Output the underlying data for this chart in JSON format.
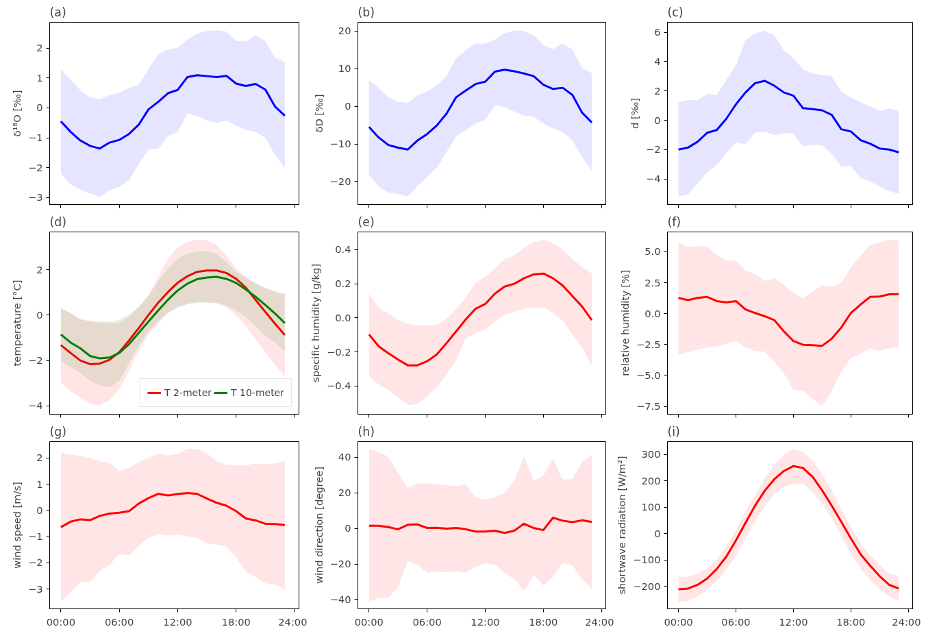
{
  "chart_data": [
    {
      "type": "line",
      "title": "(a)",
      "ylabel": "δ¹⁸O [‰]",
      "x": [
        0,
        1,
        2,
        3,
        4,
        5,
        6,
        7,
        8,
        9,
        10,
        11,
        12,
        13,
        14,
        15,
        16,
        17,
        18,
        19,
        20,
        21,
        22,
        23
      ],
      "xlim": [
        -1.15,
        24.45
      ],
      "xticks": [
        {
          "value": 0,
          "label": null
        },
        {
          "value": 6,
          "label": null
        },
        {
          "value": 12,
          "label": null
        },
        {
          "value": 18,
          "label": null
        },
        {
          "value": 24,
          "label": null
        }
      ],
      "ylim": [
        -3.23,
        2.86
      ],
      "yticks": [
        -3,
        -2,
        -1,
        0,
        1,
        2
      ],
      "tick_labels": "y",
      "grid": false,
      "legend": false,
      "series": [
        {
          "color": "#0000ff",
          "values": [
            -0.45,
            -0.8,
            -1.09,
            -1.27,
            -1.36,
            -1.16,
            -1.07,
            -0.87,
            -0.56,
            -0.05,
            0.2,
            0.49,
            0.6,
            1.03,
            1.09,
            1.06,
            1.03,
            1.07,
            0.81,
            0.73,
            0.8,
            0.61,
            0.04,
            -0.26
          ],
          "lower": [
            -2.19,
            -2.56,
            -2.74,
            -2.86,
            -2.97,
            -2.76,
            -2.64,
            -2.42,
            -1.88,
            -1.39,
            -1.37,
            -0.94,
            -0.8,
            -0.19,
            -0.27,
            -0.42,
            -0.5,
            -0.42,
            -0.6,
            -0.73,
            -0.81,
            -1.0,
            -1.58,
            -2.01
          ],
          "upper": [
            1.28,
            0.94,
            0.59,
            0.35,
            0.29,
            0.43,
            0.51,
            0.67,
            0.77,
            1.3,
            1.79,
            1.95,
            2.01,
            2.28,
            2.48,
            2.57,
            2.59,
            2.55,
            2.24,
            2.22,
            2.43,
            2.24,
            1.67,
            1.54
          ]
        }
      ]
    },
    {
      "type": "line",
      "title": "(b)",
      "ylabel": "δD [‰]",
      "x": [
        0,
        1,
        2,
        3,
        4,
        5,
        6,
        7,
        8,
        9,
        10,
        11,
        12,
        13,
        14,
        15,
        16,
        17,
        18,
        19,
        20,
        21,
        22,
        23
      ],
      "xlim": [
        -1.15,
        24.45
      ],
      "xticks": [
        {
          "value": 0,
          "label": null
        },
        {
          "value": 6,
          "label": null
        },
        {
          "value": 12,
          "label": null
        },
        {
          "value": 18,
          "label": null
        },
        {
          "value": 24,
          "label": null
        }
      ],
      "ylim": [
        -26.1,
        22.3
      ],
      "yticks": [
        -20,
        -10,
        0,
        10,
        20
      ],
      "tick_labels": "y",
      "grid": false,
      "legend": false,
      "series": [
        {
          "color": "#0000ff",
          "values": [
            -5.5,
            -8.3,
            -10.3,
            -11.0,
            -11.5,
            -9.1,
            -7.4,
            -5.1,
            -2.0,
            2.4,
            4.2,
            5.9,
            6.5,
            9.2,
            9.7,
            9.3,
            8.7,
            8.0,
            5.7,
            4.6,
            4.9,
            3.0,
            -1.7,
            -4.3
          ],
          "lower": [
            -18.2,
            -21.4,
            -22.9,
            -23.3,
            -23.9,
            -21.1,
            -18.9,
            -16.3,
            -12.2,
            -8.0,
            -6.3,
            -4.6,
            -3.6,
            0.3,
            -0.2,
            -1.4,
            -2.5,
            -2.8,
            -4.6,
            -5.9,
            -6.9,
            -9.0,
            -13.5,
            -17.1
          ],
          "upper": [
            6.9,
            4.9,
            2.4,
            1.2,
            0.9,
            2.9,
            3.9,
            5.6,
            8.0,
            12.8,
            14.9,
            16.6,
            16.6,
            17.7,
            19.4,
            20.1,
            20.0,
            18.8,
            16.2,
            15.1,
            16.7,
            15.0,
            10.1,
            8.8
          ]
        }
      ]
    },
    {
      "type": "line",
      "title": "(c)",
      "ylabel": "d [‰]",
      "x": [
        0,
        1,
        2,
        3,
        4,
        5,
        6,
        7,
        8,
        9,
        10,
        11,
        12,
        13,
        14,
        15,
        16,
        17,
        18,
        19,
        20,
        21,
        22,
        23
      ],
      "xlim": [
        -1.15,
        24.45
      ],
      "xticks": [
        {
          "value": 0,
          "label": null
        },
        {
          "value": 6,
          "label": null
        },
        {
          "value": 12,
          "label": null
        },
        {
          "value": 18,
          "label": null
        },
        {
          "value": 24,
          "label": null
        }
      ],
      "ylim": [
        -5.74,
        6.68
      ],
      "yticks": [
        -4,
        -2,
        0,
        2,
        4,
        6
      ],
      "tick_labels": "y",
      "grid": false,
      "legend": false,
      "series": [
        {
          "color": "#0000ff",
          "values": [
            -1.99,
            -1.86,
            -1.46,
            -0.85,
            -0.66,
            0.11,
            1.09,
            1.9,
            2.53,
            2.69,
            2.36,
            1.9,
            1.68,
            0.83,
            0.76,
            0.68,
            0.37,
            -0.61,
            -0.76,
            -1.35,
            -1.59,
            -1.92,
            -1.99,
            -2.18
          ],
          "lower": [
            -5.2,
            -5.04,
            -4.3,
            -3.56,
            -3.03,
            -2.24,
            -1.52,
            -1.63,
            -0.83,
            -0.79,
            -1.0,
            -0.87,
            -0.92,
            -1.79,
            -1.66,
            -1.72,
            -2.27,
            -3.17,
            -3.1,
            -3.93,
            -4.15,
            -4.5,
            -4.83,
            -5.0
          ],
          "upper": [
            1.24,
            1.37,
            1.37,
            1.79,
            1.72,
            2.75,
            3.76,
            5.46,
            5.92,
            6.11,
            5.81,
            4.76,
            4.24,
            3.47,
            3.19,
            3.08,
            3.02,
            1.94,
            1.55,
            1.24,
            0.96,
            0.63,
            0.81,
            0.66
          ]
        }
      ]
    },
    {
      "type": "line",
      "title": "(d)",
      "ylabel": "temperature [°C]",
      "x": [
        0,
        1,
        2,
        3,
        4,
        5,
        6,
        7,
        8,
        9,
        10,
        11,
        12,
        13,
        14,
        15,
        16,
        17,
        18,
        19,
        20,
        21,
        22,
        23
      ],
      "xlim": [
        -1.15,
        24.45
      ],
      "xticks": [
        {
          "value": 0,
          "label": null
        },
        {
          "value": 6,
          "label": null
        },
        {
          "value": 12,
          "label": null
        },
        {
          "value": 18,
          "label": null
        },
        {
          "value": 24,
          "label": null
        }
      ],
      "ylim": [
        -4.37,
        3.67
      ],
      "yticks": [
        -4,
        -2,
        0,
        2
      ],
      "tick_labels": "y",
      "grid": false,
      "legend": "bottom right",
      "series": [
        {
          "name": "T 2-meter",
          "color": "#ff0000",
          "values": [
            -1.32,
            -1.67,
            -2.0,
            -2.16,
            -2.14,
            -1.97,
            -1.63,
            -1.12,
            -0.57,
            0.01,
            0.55,
            1.02,
            1.43,
            1.72,
            1.91,
            1.97,
            1.97,
            1.86,
            1.6,
            1.21,
            0.67,
            0.14,
            -0.38,
            -0.88
          ],
          "lower": [
            -2.98,
            -3.36,
            -3.66,
            -3.9,
            -3.97,
            -3.76,
            -3.26,
            -2.48,
            -1.53,
            -0.85,
            -0.35,
            0.1,
            0.33,
            0.5,
            0.57,
            0.57,
            0.52,
            0.35,
            0.0,
            -0.5,
            -1.06,
            -1.63,
            -2.2,
            -2.69
          ],
          "upper": [
            0.31,
            0.1,
            -0.18,
            -0.28,
            -0.33,
            -0.34,
            -0.33,
            -0.07,
            0.35,
            0.89,
            1.66,
            2.51,
            2.98,
            3.23,
            3.33,
            3.3,
            3.11,
            2.62,
            2.05,
            1.69,
            1.42,
            1.2,
            1.02,
            0.92
          ]
        },
        {
          "name": "T 10-meter",
          "color": "#008000",
          "values": [
            -0.85,
            -1.21,
            -1.46,
            -1.8,
            -1.91,
            -1.87,
            -1.67,
            -1.28,
            -0.78,
            -0.28,
            0.21,
            0.68,
            1.09,
            1.39,
            1.59,
            1.66,
            1.69,
            1.6,
            1.42,
            1.13,
            0.81,
            0.45,
            0.07,
            -0.35
          ],
          "lower": [
            -2.0,
            -2.3,
            -2.54,
            -2.9,
            -3.11,
            -3.18,
            -2.9,
            -2.12,
            -1.35,
            -0.71,
            -0.25,
            0.1,
            0.35,
            0.5,
            0.55,
            0.55,
            0.54,
            0.43,
            0.21,
            -0.07,
            -0.47,
            -0.92,
            -1.21,
            -1.6
          ],
          "upper": [
            0.31,
            0.07,
            -0.18,
            -0.25,
            -0.28,
            -0.28,
            -0.21,
            0.03,
            0.35,
            0.85,
            1.49,
            2.05,
            2.48,
            2.72,
            2.81,
            2.82,
            2.7,
            2.34,
            1.92,
            1.63,
            1.39,
            1.2,
            1.06,
            0.95
          ]
        }
      ]
    },
    {
      "type": "line",
      "title": "(e)",
      "ylabel": "specific humidity [g/kg]",
      "x": [
        0,
        1,
        2,
        3,
        4,
        5,
        6,
        7,
        8,
        9,
        10,
        11,
        12,
        13,
        14,
        15,
        16,
        17,
        18,
        19,
        20,
        21,
        22,
        23
      ],
      "xlim": [
        -1.15,
        24.45
      ],
      "xticks": [
        {
          "value": 0,
          "label": null
        },
        {
          "value": 6,
          "label": null
        },
        {
          "value": 12,
          "label": null
        },
        {
          "value": 18,
          "label": null
        },
        {
          "value": 24,
          "label": null
        }
      ],
      "ylim": [
        -0.566,
        0.504
      ],
      "yticks": [
        {
          "value": -0.4,
          "label": "−0.4"
        },
        {
          "value": -0.2,
          "label": "−0.2"
        },
        {
          "value": 0,
          "label": "0.0"
        },
        {
          "value": 0.2,
          "label": "0.2"
        },
        {
          "value": 0.4,
          "label": "0.4"
        }
      ],
      "tick_labels": "y",
      "grid": false,
      "legend": false,
      "series": [
        {
          "color": "#ff0000",
          "values": [
            -0.098,
            -0.168,
            -0.208,
            -0.245,
            -0.279,
            -0.279,
            -0.255,
            -0.215,
            -0.149,
            -0.079,
            -0.009,
            0.053,
            0.081,
            0.142,
            0.183,
            0.2,
            0.232,
            0.255,
            0.26,
            0.232,
            0.189,
            0.128,
            0.066,
            -0.013
          ],
          "lower": [
            -0.347,
            -0.391,
            -0.425,
            -0.466,
            -0.513,
            -0.506,
            -0.462,
            -0.409,
            -0.334,
            -0.249,
            -0.117,
            -0.089,
            -0.07,
            -0.023,
            0.015,
            0.034,
            0.053,
            0.062,
            0.058,
            0.028,
            -0.017,
            -0.098,
            -0.174,
            -0.281
          ],
          "upper": [
            0.142,
            0.062,
            0.025,
            -0.013,
            -0.036,
            -0.045,
            -0.043,
            -0.04,
            -0.004,
            0.05,
            0.12,
            0.204,
            0.242,
            0.289,
            0.345,
            0.368,
            0.411,
            0.445,
            0.458,
            0.44,
            0.402,
            0.345,
            0.298,
            0.26
          ]
        }
      ]
    },
    {
      "type": "line",
      "title": "(f)",
      "ylabel": "relative humidity [%]",
      "x": [
        0,
        1,
        2,
        3,
        4,
        5,
        6,
        7,
        8,
        9,
        10,
        11,
        12,
        13,
        14,
        15,
        16,
        17,
        18,
        19,
        20,
        21,
        22,
        23
      ],
      "xlim": [
        -1.15,
        24.45
      ],
      "xticks": [
        {
          "value": 0,
          "label": null
        },
        {
          "value": 6,
          "label": null
        },
        {
          "value": 12,
          "label": null
        },
        {
          "value": 18,
          "label": null
        },
        {
          "value": 24,
          "label": null
        }
      ],
      "ylim": [
        -8.13,
        6.6
      ],
      "yticks": [
        {
          "value": -7.5,
          "label": "−7.5"
        },
        {
          "value": -5,
          "label": "−5.0"
        },
        {
          "value": -2.5,
          "label": "−2.5"
        },
        {
          "value": 0,
          "label": "0.0"
        },
        {
          "value": 2.5,
          "label": "2.5"
        },
        {
          "value": 5,
          "label": "5.0"
        }
      ],
      "tick_labels": "y",
      "grid": false,
      "legend": false,
      "series": [
        {
          "color": "#ff0000",
          "values": [
            1.27,
            1.09,
            1.27,
            1.35,
            1.01,
            0.91,
            1.01,
            0.34,
            0.05,
            -0.21,
            -0.52,
            -1.43,
            -2.21,
            -2.52,
            -2.55,
            -2.6,
            -2.03,
            -1.12,
            0.05,
            0.73,
            1.35,
            1.38,
            1.56,
            1.58
          ],
          "lower": [
            -3.3,
            -3.12,
            -2.91,
            -2.75,
            -2.65,
            -2.44,
            -2.21,
            -2.73,
            -3.04,
            -3.06,
            -3.9,
            -4.81,
            -6.16,
            -6.26,
            -6.88,
            -7.48,
            -6.26,
            -4.68,
            -3.58,
            -3.25,
            -2.81,
            -2.99,
            -2.81,
            -2.7
          ],
          "upper": [
            5.82,
            5.35,
            5.45,
            5.43,
            4.75,
            4.29,
            4.29,
            3.48,
            3.19,
            2.62,
            2.88,
            2.29,
            1.69,
            1.25,
            1.77,
            2.29,
            2.18,
            2.47,
            3.74,
            4.68,
            5.53,
            5.77,
            5.95,
            5.9
          ]
        }
      ]
    },
    {
      "type": "line",
      "title": "(g)",
      "ylabel": "wind speed [m/s]",
      "x": [
        0,
        1,
        2,
        3,
        4,
        5,
        6,
        7,
        8,
        9,
        10,
        11,
        12,
        13,
        14,
        15,
        16,
        17,
        18,
        19,
        20,
        21,
        22,
        23
      ],
      "xlim": [
        -1.15,
        24.45
      ],
      "xticks": [
        {
          "value": 0,
          "label": "00:00"
        },
        {
          "value": 6,
          "label": "06:00"
        },
        {
          "value": 12,
          "label": "12:00"
        },
        {
          "value": 18,
          "label": "18:00"
        },
        {
          "value": 24,
          "label": "24:00"
        }
      ],
      "ylim": [
        -3.75,
        2.62
      ],
      "yticks": [
        -3,
        -2,
        -1,
        0,
        1,
        2
      ],
      "grid": false,
      "legend": false,
      "series": [
        {
          "color": "#ff0000",
          "values": [
            -0.64,
            -0.43,
            -0.34,
            -0.37,
            -0.21,
            -0.12,
            -0.09,
            -0.03,
            0.26,
            0.47,
            0.63,
            0.57,
            0.62,
            0.66,
            0.63,
            0.45,
            0.29,
            0.18,
            -0.03,
            -0.31,
            -0.38,
            -0.51,
            -0.52,
            -0.56
          ],
          "lower": [
            -3.48,
            -3.13,
            -2.75,
            -2.72,
            -2.31,
            -2.08,
            -1.67,
            -1.72,
            -1.35,
            -1.04,
            -0.92,
            -0.96,
            -0.93,
            -0.98,
            -1.06,
            -1.26,
            -1.3,
            -1.38,
            -1.78,
            -2.34,
            -2.53,
            -2.78,
            -2.83,
            -3.02
          ],
          "upper": [
            2.21,
            2.13,
            2.08,
            2.0,
            1.87,
            1.81,
            1.49,
            1.63,
            1.84,
            2.01,
            2.17,
            2.09,
            2.15,
            2.35,
            2.34,
            2.16,
            1.89,
            1.74,
            1.72,
            1.72,
            1.78,
            1.75,
            1.8,
            1.89
          ]
        }
      ]
    },
    {
      "type": "line",
      "title": "(h)",
      "ylabel": "wind direction [degree]",
      "x": [
        0,
        1,
        2,
        3,
        4,
        5,
        6,
        7,
        8,
        9,
        10,
        11,
        12,
        13,
        14,
        15,
        16,
        17,
        18,
        19,
        20,
        21,
        22,
        23
      ],
      "xlim": [
        -1.15,
        24.45
      ],
      "xticks": [
        {
          "value": 0,
          "label": "00:00"
        },
        {
          "value": 6,
          "label": "06:00"
        },
        {
          "value": 12,
          "label": "12:00"
        },
        {
          "value": 18,
          "label": "18:00"
        },
        {
          "value": 24,
          "label": "24:00"
        }
      ],
      "ylim": [
        -45.2,
        48.7
      ],
      "yticks": [
        -40,
        -20,
        0,
        20,
        40
      ],
      "grid": false,
      "legend": false,
      "series": [
        {
          "color": "#ff0000",
          "values": [
            1.5,
            1.5,
            0.7,
            -0.5,
            2.0,
            2.2,
            0.2,
            0.3,
            -0.2,
            0.2,
            -0.5,
            -1.8,
            -1.8,
            -1.3,
            -2.6,
            -1.3,
            2.6,
            0.2,
            -1.0,
            6.0,
            4.3,
            3.5,
            4.5,
            3.6
          ],
          "lower": [
            -41.2,
            -39.1,
            -39.1,
            -32.9,
            -18.4,
            -20.4,
            -25.0,
            -24.3,
            -24.7,
            -24.2,
            -25.0,
            -21.4,
            -19.7,
            -20.4,
            -25.0,
            -28.6,
            -35.3,
            -26.2,
            -32.1,
            -27.5,
            -19.2,
            -20.9,
            -28.6,
            -34.1
          ],
          "upper": [
            44.5,
            42.9,
            40.2,
            31.3,
            22.7,
            25.2,
            25.2,
            24.8,
            24.2,
            23.8,
            24.7,
            17.2,
            16.1,
            17.7,
            20.0,
            26.8,
            40.4,
            26.7,
            29.6,
            39.2,
            27.5,
            27.5,
            37.6,
            41.2
          ]
        }
      ]
    },
    {
      "type": "line",
      "title": "(i)",
      "ylabel": "shortwave radiation [W/m²]",
      "x": [
        0,
        1,
        2,
        3,
        4,
        5,
        6,
        7,
        8,
        9,
        10,
        11,
        12,
        13,
        14,
        15,
        16,
        17,
        18,
        19,
        20,
        21,
        22,
        23
      ],
      "xlim": [
        -1.15,
        24.45
      ],
      "xticks": [
        {
          "value": 0,
          "label": "00:00"
        },
        {
          "value": 6,
          "label": "06:00"
        },
        {
          "value": 12,
          "label": "12:00"
        },
        {
          "value": 18,
          "label": "18:00"
        },
        {
          "value": 24,
          "label": "24:00"
        }
      ],
      "ylim": [
        -284.9,
        348.6
      ],
      "yticks": [
        -200,
        -100,
        0,
        100,
        200,
        300
      ],
      "grid": false,
      "legend": false,
      "series": [
        {
          "color": "#ff0000",
          "values": [
            -211,
            -208,
            -194,
            -170,
            -134,
            -87,
            -26,
            41,
            106,
            162,
            206,
            237,
            256,
            249,
            215,
            164,
            106,
            45,
            -18,
            -77,
            -121,
            -161,
            -194,
            -208
          ],
          "lower": [
            -258,
            -255,
            -238,
            -213,
            -180,
            -137,
            -82,
            -18,
            47,
            103,
            151,
            178,
            189,
            189,
            159,
            114,
            58,
            -9,
            -76,
            -132,
            -176,
            -210,
            -238,
            -257
          ],
          "upper": [
            -165,
            -162,
            -152,
            -132,
            -98,
            -51,
            13,
            86,
            147,
            209,
            259,
            298,
            321,
            310,
            277,
            226,
            164,
            92,
            25,
            -37,
            -82,
            -121,
            -149,
            -160
          ]
        }
      ]
    }
  ]
}
